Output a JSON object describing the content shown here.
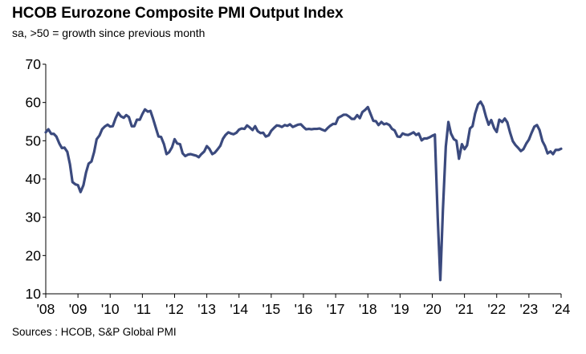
{
  "chart_data": {
    "type": "line",
    "title": "HCOB Eurozone Composite PMI Output Index",
    "subtitle": "sa, >50 = growth  since previous month",
    "source": "Sources : HCOB, S&P Global PMI",
    "xlabel": "",
    "ylabel": "",
    "ylim": [
      10,
      70
    ],
    "yticks": [
      10,
      20,
      30,
      40,
      50,
      60,
      70
    ],
    "xlim": [
      2008,
      2024
    ],
    "xticks": [
      "'08",
      "'09",
      "'10",
      "'11",
      "'12",
      "'13",
      "'14",
      "'15",
      "'16",
      "'17",
      "'18",
      "'19",
      "'20",
      "'21",
      "'22",
      "'23",
      "'24"
    ],
    "grid": false,
    "line_color": "#3b4a7e",
    "series": [
      {
        "name": "Composite PMI Output Index",
        "x": [
          2008.0,
          2008.08,
          2008.17,
          2008.25,
          2008.33,
          2008.42,
          2008.5,
          2008.58,
          2008.67,
          2008.75,
          2008.83,
          2008.92,
          2009.0,
          2009.08,
          2009.17,
          2009.25,
          2009.33,
          2009.42,
          2009.5,
          2009.58,
          2009.67,
          2009.75,
          2009.83,
          2009.92,
          2010.0,
          2010.08,
          2010.17,
          2010.25,
          2010.33,
          2010.42,
          2010.5,
          2010.58,
          2010.67,
          2010.75,
          2010.83,
          2010.92,
          2011.0,
          2011.08,
          2011.17,
          2011.25,
          2011.33,
          2011.42,
          2011.5,
          2011.58,
          2011.67,
          2011.75,
          2011.83,
          2011.92,
          2012.0,
          2012.08,
          2012.17,
          2012.25,
          2012.33,
          2012.42,
          2012.5,
          2012.58,
          2012.67,
          2012.75,
          2012.83,
          2012.92,
          2013.0,
          2013.08,
          2013.17,
          2013.25,
          2013.33,
          2013.42,
          2013.5,
          2013.58,
          2013.67,
          2013.75,
          2013.83,
          2013.92,
          2014.0,
          2014.08,
          2014.17,
          2014.25,
          2014.33,
          2014.42,
          2014.5,
          2014.58,
          2014.67,
          2014.75,
          2014.83,
          2014.92,
          2015.0,
          2015.08,
          2015.17,
          2015.25,
          2015.33,
          2015.42,
          2015.5,
          2015.58,
          2015.67,
          2015.75,
          2015.83,
          2015.92,
          2016.0,
          2016.08,
          2016.17,
          2016.25,
          2016.33,
          2016.42,
          2016.5,
          2016.58,
          2016.67,
          2016.75,
          2016.83,
          2016.92,
          2017.0,
          2017.08,
          2017.17,
          2017.25,
          2017.33,
          2017.42,
          2017.5,
          2017.58,
          2017.67,
          2017.75,
          2017.83,
          2017.92,
          2018.0,
          2018.08,
          2018.17,
          2018.25,
          2018.33,
          2018.42,
          2018.5,
          2018.58,
          2018.67,
          2018.75,
          2018.83,
          2018.92,
          2019.0,
          2019.08,
          2019.17,
          2019.25,
          2019.33,
          2019.42,
          2019.5,
          2019.58,
          2019.67,
          2019.75,
          2019.83,
          2019.92,
          2020.0,
          2020.08,
          2020.17,
          2020.25,
          2020.33,
          2020.42,
          2020.5,
          2020.58,
          2020.67,
          2020.75,
          2020.83,
          2020.92,
          2021.0,
          2021.08,
          2021.17,
          2021.25,
          2021.33,
          2021.42,
          2021.5,
          2021.58,
          2021.67,
          2021.75,
          2021.83,
          2021.92,
          2022.0,
          2022.08,
          2022.17,
          2022.25,
          2022.33,
          2022.42,
          2022.5,
          2022.58,
          2022.67,
          2022.75,
          2022.83,
          2022.92,
          2023.0,
          2023.08,
          2023.17,
          2023.25,
          2023.33,
          2023.42,
          2023.5,
          2023.58,
          2023.67,
          2023.75,
          2023.83,
          2023.92,
          2024.0
        ],
        "values": [
          52.2,
          53.0,
          51.8,
          51.8,
          51.1,
          49.3,
          48.1,
          48.2,
          47.1,
          43.9,
          39.2,
          38.6,
          38.4,
          36.6,
          38.4,
          41.7,
          44.0,
          44.6,
          47.0,
          50.4,
          51.4,
          53.0,
          53.7,
          54.2,
          53.7,
          53.8,
          55.9,
          57.3,
          56.4,
          56.0,
          56.7,
          56.2,
          53.8,
          53.8,
          55.5,
          55.5,
          57.0,
          58.2,
          57.6,
          57.8,
          55.8,
          53.3,
          51.1,
          51.0,
          49.1,
          46.5,
          47.0,
          48.3,
          50.4,
          49.3,
          49.1,
          46.7,
          46.0,
          46.4,
          46.5,
          46.3,
          46.1,
          45.7,
          46.5,
          47.2,
          48.6,
          47.9,
          46.5,
          46.9,
          47.7,
          48.7,
          50.5,
          51.5,
          52.2,
          51.9,
          51.7,
          52.1,
          52.9,
          53.2,
          53.1,
          54.0,
          53.5,
          52.8,
          53.8,
          52.5,
          52.0,
          52.1,
          51.1,
          51.4,
          52.6,
          53.3,
          54.0,
          53.9,
          53.6,
          54.1,
          53.9,
          54.3,
          53.6,
          53.9,
          54.2,
          54.3,
          53.6,
          53.0,
          53.1,
          53.0,
          53.1,
          53.1,
          53.2,
          52.9,
          52.6,
          53.3,
          53.9,
          54.4,
          54.4,
          56.0,
          56.4,
          56.8,
          56.8,
          56.3,
          55.7,
          55.7,
          56.7,
          55.9,
          57.5,
          58.1,
          58.8,
          57.1,
          55.2,
          55.1,
          54.1,
          54.9,
          54.3,
          54.5,
          54.1,
          53.1,
          52.7,
          51.1,
          51.0,
          51.9,
          51.6,
          51.5,
          51.8,
          52.2,
          51.5,
          51.9,
          50.1,
          50.6,
          50.6,
          50.9,
          51.3,
          51.6,
          29.7,
          13.6,
          31.9,
          48.5,
          54.9,
          51.9,
          50.4,
          50.0,
          45.3,
          49.1,
          47.8,
          48.8,
          53.2,
          53.8,
          57.1,
          59.5,
          60.2,
          59.0,
          56.2,
          54.2,
          55.4,
          53.3,
          52.3,
          55.5,
          54.9,
          55.8,
          54.8,
          52.0,
          49.9,
          48.9,
          48.1,
          47.3,
          47.8,
          49.3,
          50.3,
          52.0,
          53.7,
          54.1,
          52.8,
          49.9,
          48.6,
          46.7,
          47.2,
          46.5,
          47.6,
          47.6,
          47.9
        ]
      }
    ]
  }
}
